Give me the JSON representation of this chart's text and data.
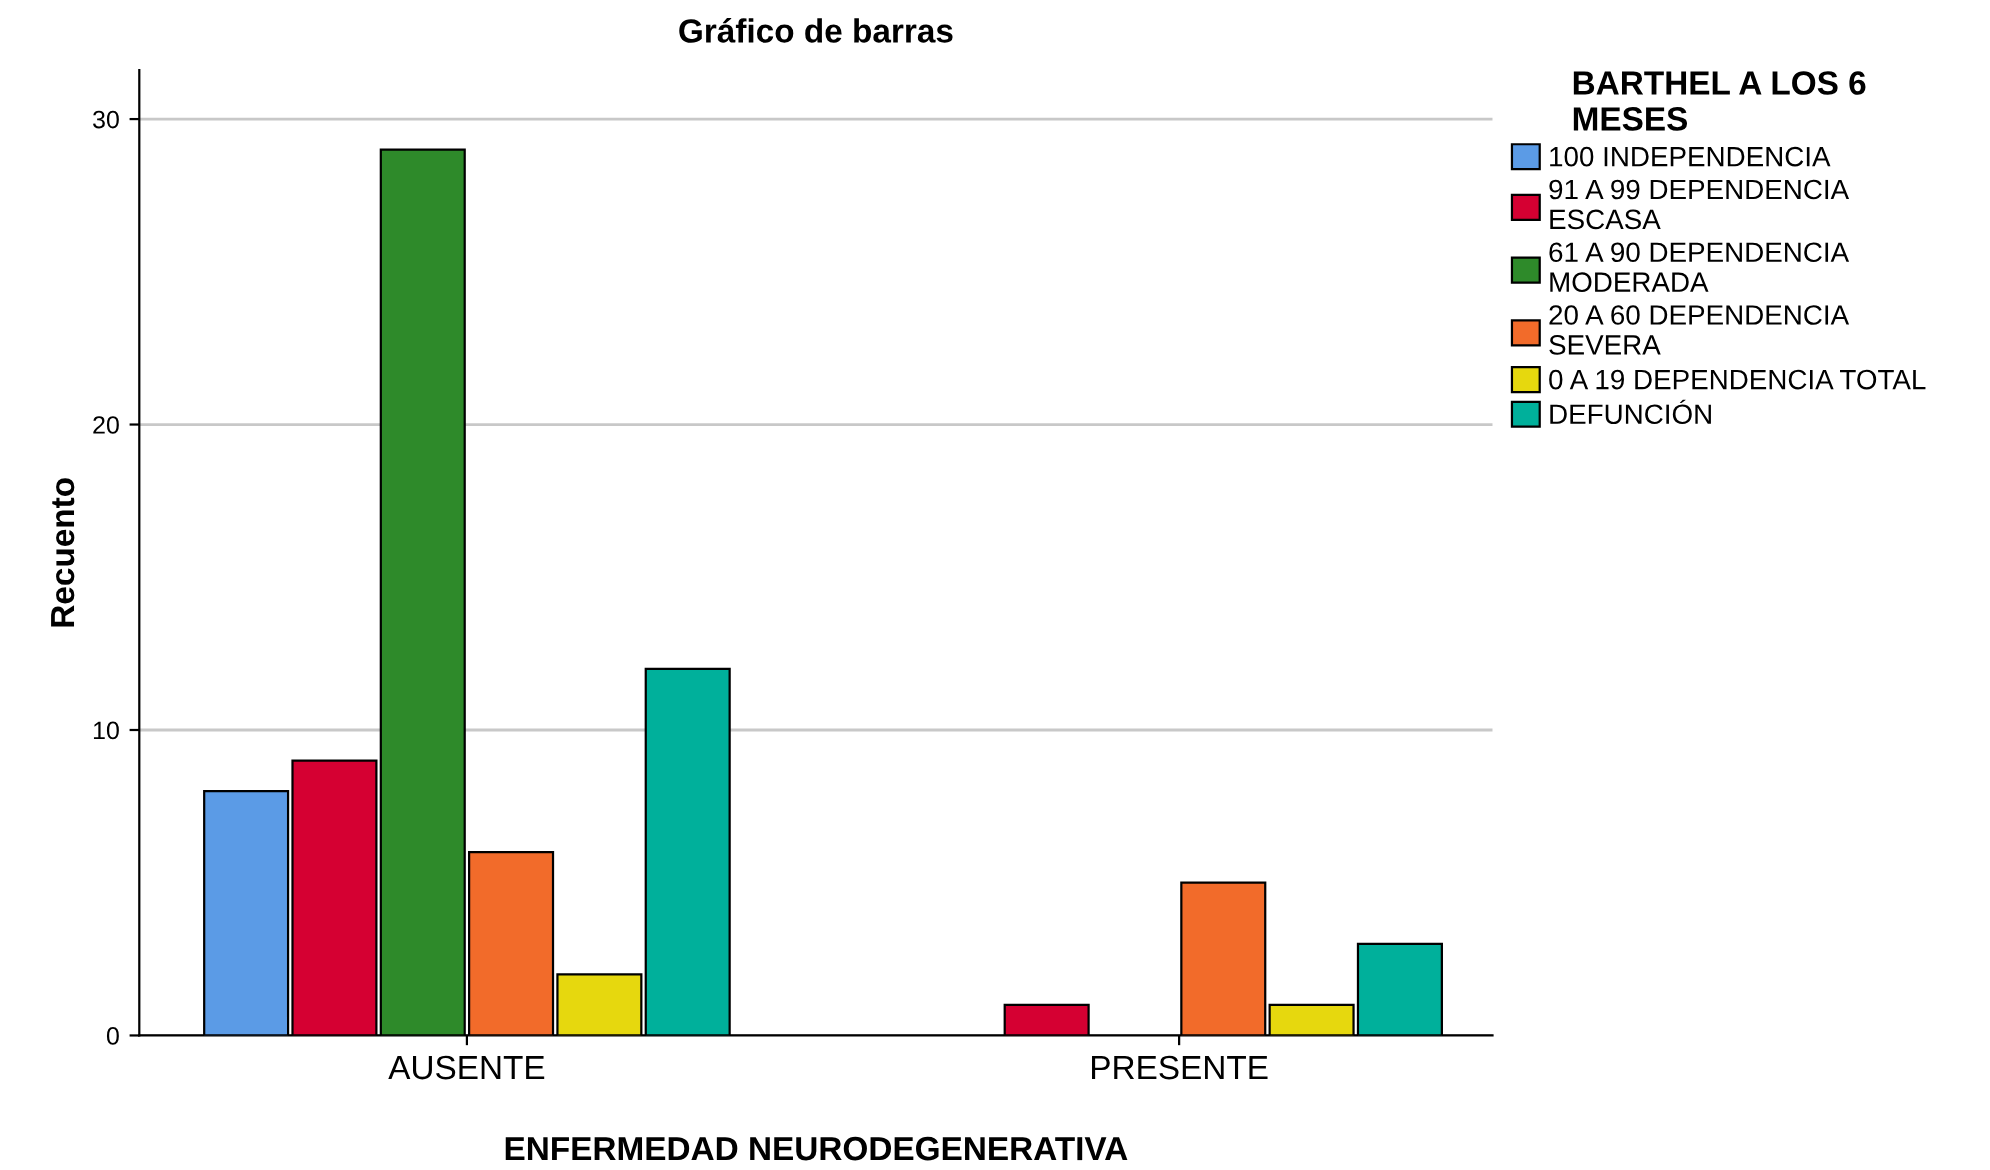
{
  "chart_data": {
    "type": "bar",
    "title": "Gráfico de barras",
    "xlabel": "ENFERMEDAD NEURODEGENERATIVA",
    "ylabel": "Recuento",
    "legend_title": "BARTHEL A LOS 6\nMESES",
    "categories": [
      "AUSENTE",
      "PRESENTE"
    ],
    "series": [
      {
        "name": "100 INDEPENDENCIA",
        "color": "#5b9be6",
        "values": [
          8,
          null
        ]
      },
      {
        "name": "91 A 99 DEPENDENCIA\nESCASA",
        "color": "#d50032",
        "values": [
          9,
          1
        ]
      },
      {
        "name": "61 A 90 DEPENDENCIA\nMODERADA",
        "color": "#2e8a2a",
        "values": [
          29,
          null
        ]
      },
      {
        "name": "20 A 60 DEPENDENCIA\nSEVERA",
        "color": "#f26b2a",
        "values": [
          6,
          5
        ]
      },
      {
        "name": "0 A 19 DEPENDENCIA TOTAL",
        "color": "#e6d80e",
        "values": [
          2,
          1
        ]
      },
      {
        "name": "DEFUNCIÓN",
        "color": "#00b09b",
        "values": [
          12,
          3
        ]
      }
    ],
    "ylim": [
      0,
      31.6
    ],
    "yticks": [
      0,
      10,
      20,
      30
    ],
    "grid": "y",
    "legend": "right"
  }
}
